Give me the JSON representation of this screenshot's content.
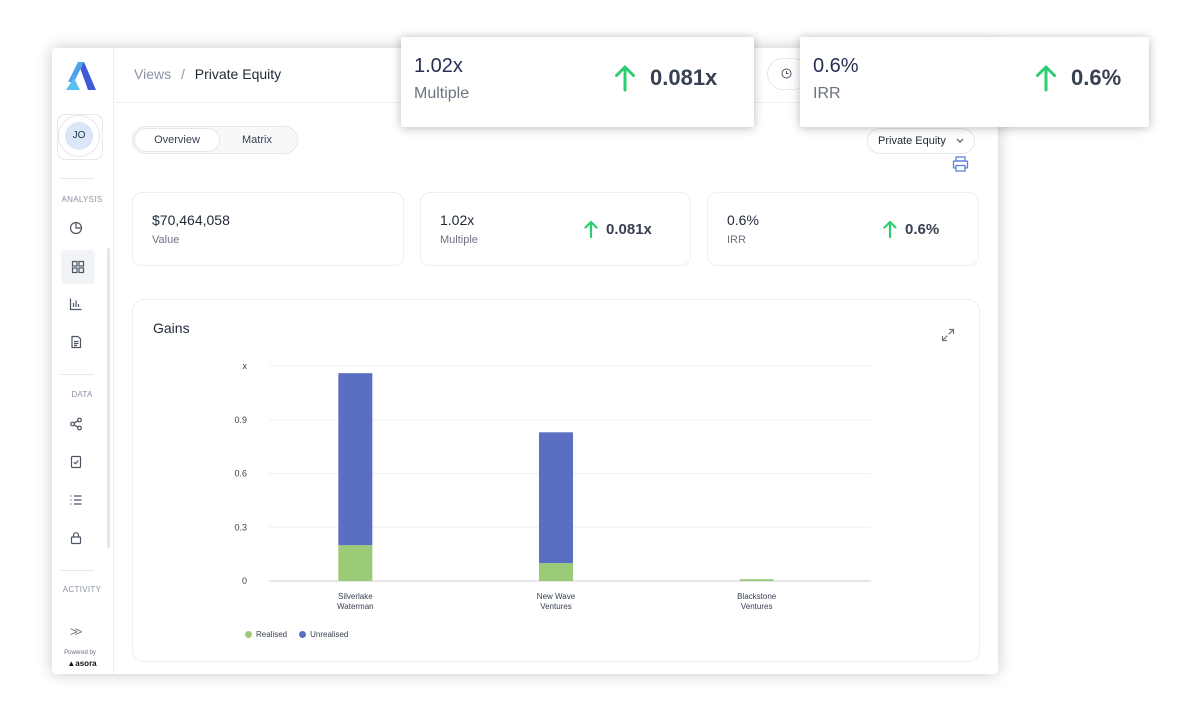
{
  "breadcrumb": {
    "root": "Views",
    "separator": "/",
    "current": "Private Equity"
  },
  "user": {
    "initials": "JO"
  },
  "sidebar": {
    "sections": [
      "ANALYSIS",
      "DATA",
      "ACTIVITY"
    ],
    "icons": [
      "dashboard-pie-icon",
      "grid-icon",
      "bar-chart-icon",
      "document-icon",
      "share-nodes-icon",
      "checklist-doc-icon",
      "list-icon",
      "lock-icon"
    ],
    "powered_by": "Powered by",
    "brand": "asora"
  },
  "tabs": [
    {
      "label": "Overview",
      "active": true
    },
    {
      "label": "Matrix",
      "active": false
    }
  ],
  "filter": {
    "selected": "Private Equity"
  },
  "cards": [
    {
      "value": "$70,464,058",
      "label": "Value"
    },
    {
      "value": "1.02x",
      "label": "Multiple",
      "delta": "0.081x"
    },
    {
      "value": "0.6%",
      "label": "IRR",
      "delta": "0.6%"
    }
  ],
  "popups": [
    {
      "value": "1.02x",
      "label": "Multiple",
      "delta": "0.081x"
    },
    {
      "value": "0.6%",
      "label": "IRR",
      "delta": "0.6%"
    }
  ],
  "colors": {
    "up": "#2ecc71",
    "realised": "#9bcb77",
    "unrealised": "#5b6fc2",
    "accent": "#5b7fe0"
  },
  "chart_data": {
    "type": "bar",
    "stacked": true,
    "title": "Gains",
    "ylabel": "x",
    "yticks": [
      "0",
      "0.3",
      "0.6",
      "0.9"
    ],
    "ylim": [
      0,
      1.2
    ],
    "grid": true,
    "categories": [
      [
        "Silverlake",
        "Waterman"
      ],
      [
        "New Wave",
        "Ventures"
      ],
      [
        "Blackstone",
        "Ventures"
      ]
    ],
    "series": [
      {
        "name": "Realised",
        "values": [
          0.2,
          0.1,
          0.01
        ]
      },
      {
        "name": "Unrealised",
        "values": [
          0.96,
          0.73,
          0.0
        ]
      }
    ],
    "legend": "bottom-left"
  }
}
